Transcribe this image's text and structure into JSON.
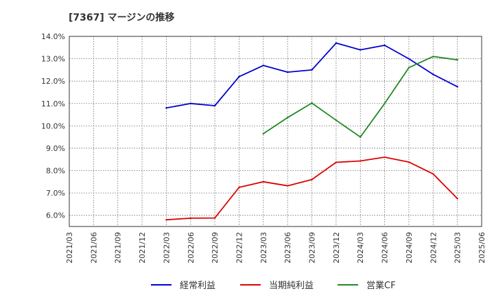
{
  "chart_data": {
    "type": "line",
    "title": "[7367]  マージンの推移",
    "xlabel": "",
    "ylabel": "",
    "ylim": [
      5.5,
      14.0
    ],
    "yticks": [
      6.0,
      7.0,
      8.0,
      9.0,
      10.0,
      11.0,
      12.0,
      13.0,
      14.0
    ],
    "ytick_labels": [
      "6.0%",
      "7.0%",
      "8.0%",
      "9.0%",
      "10.0%",
      "11.0%",
      "12.0%",
      "13.0%",
      "14.0%"
    ],
    "categories": [
      "2021/03",
      "2021/06",
      "2021/09",
      "2021/12",
      "2022/03",
      "2022/06",
      "2022/09",
      "2022/12",
      "2023/03",
      "2023/06",
      "2023/09",
      "2023/12",
      "2024/03",
      "2024/06",
      "2024/09",
      "2024/12",
      "2025/03",
      "2025/06"
    ],
    "grid": true,
    "legend_position": "bottom",
    "series": [
      {
        "name": "経常利益",
        "color": "#0000cc",
        "values": [
          null,
          null,
          null,
          null,
          10.8,
          11.0,
          10.9,
          12.2,
          12.7,
          12.4,
          12.5,
          13.7,
          13.4,
          13.6,
          13.0,
          12.3,
          11.75,
          null
        ]
      },
      {
        "name": "当期純利益",
        "color": "#dd0000",
        "values": [
          null,
          null,
          null,
          null,
          5.8,
          5.87,
          5.88,
          7.25,
          7.5,
          7.32,
          7.6,
          8.37,
          8.43,
          8.6,
          8.38,
          7.85,
          6.75,
          null
        ]
      },
      {
        "name": "営業CF",
        "color": "#228822",
        "values": [
          null,
          null,
          null,
          null,
          null,
          null,
          null,
          null,
          9.65,
          10.37,
          11.02,
          10.25,
          9.5,
          11.0,
          12.6,
          13.1,
          12.95,
          null
        ]
      }
    ]
  }
}
